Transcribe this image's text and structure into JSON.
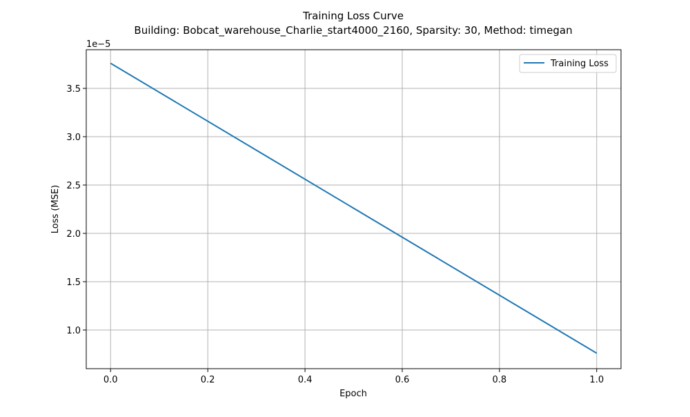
{
  "chart_data": {
    "type": "line",
    "title": "Training Loss Curve",
    "subtitle": "Building: Bobcat_warehouse_Charlie_start4000_2160, Sparsity: 30, Method: timegan",
    "xlabel": "Epoch",
    "ylabel": "Loss (MSE)",
    "y_offset_label": "1e−5",
    "x_ticks": [
      0.0,
      0.2,
      0.4,
      0.6,
      0.8,
      1.0
    ],
    "x_tick_labels": [
      "0.0",
      "0.2",
      "0.4",
      "0.6",
      "0.8",
      "1.0"
    ],
    "y_ticks": [
      1.0,
      1.5,
      2.0,
      2.5,
      3.0,
      3.5
    ],
    "y_tick_labels": [
      "1.0",
      "1.5",
      "2.0",
      "2.5",
      "3.0",
      "3.5"
    ],
    "xlim": [
      -0.05,
      1.05
    ],
    "ylim": [
      0.6,
      3.9
    ],
    "y_scale_exponent": -5,
    "grid": true,
    "legend_position": "top-right",
    "series": [
      {
        "name": "Training Loss",
        "color": "#1f77b4",
        "x": [
          0,
          1
        ],
        "y": [
          3.76,
          0.76
        ]
      }
    ]
  }
}
